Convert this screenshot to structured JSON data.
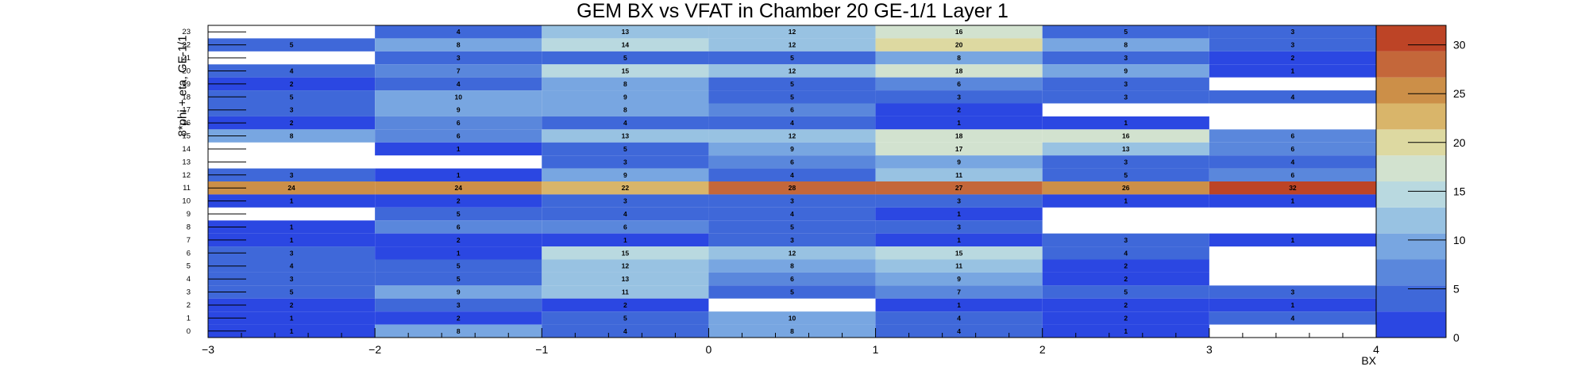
{
  "chart_data": {
    "type": "heatmap",
    "title": "GEM BX vs VFAT in Chamber 20 GE-1/1 Layer 1",
    "xlabel": "BX",
    "ylabel": "8*phi + eta, GE-1/1",
    "xlim": [
      -3,
      4
    ],
    "ylim": [
      0,
      24
    ],
    "x_bins": [
      -2.5,
      -1.5,
      -0.5,
      0.5,
      1.5,
      2.5,
      3.5
    ],
    "x_ticks": [
      -3,
      -2,
      -1,
      0,
      1,
      2,
      3,
      4
    ],
    "y_rows": [
      {
        "y": 23,
        "values": [
          null,
          4,
          13,
          12,
          16,
          5,
          3
        ]
      },
      {
        "y": 22,
        "values": [
          5,
          8,
          14,
          12,
          20,
          8,
          3
        ]
      },
      {
        "y": 21,
        "values": [
          null,
          3,
          5,
          5,
          8,
          3,
          2
        ]
      },
      {
        "y": 20,
        "values": [
          4,
          7,
          15,
          12,
          18,
          9,
          1
        ]
      },
      {
        "y": 19,
        "values": [
          2,
          4,
          8,
          5,
          6,
          3,
          null
        ]
      },
      {
        "y": 18,
        "values": [
          5,
          10,
          9,
          5,
          3,
          3,
          4
        ]
      },
      {
        "y": 17,
        "values": [
          3,
          9,
          8,
          6,
          2,
          null,
          null
        ]
      },
      {
        "y": 16,
        "values": [
          2,
          6,
          4,
          4,
          1,
          1,
          null
        ]
      },
      {
        "y": 15,
        "values": [
          8,
          6,
          13,
          12,
          18,
          16,
          6
        ]
      },
      {
        "y": 14,
        "values": [
          null,
          1,
          5,
          9,
          17,
          13,
          6
        ]
      },
      {
        "y": 13,
        "values": [
          null,
          null,
          3,
          6,
          9,
          3,
          4
        ]
      },
      {
        "y": 12,
        "values": [
          3,
          1,
          9,
          4,
          11,
          5,
          6
        ]
      },
      {
        "y": 11,
        "values": [
          24,
          24,
          22,
          28,
          27,
          26,
          32
        ]
      },
      {
        "y": 10,
        "values": [
          1,
          2,
          3,
          3,
          3,
          1,
          1
        ]
      },
      {
        "y": 9,
        "values": [
          null,
          5,
          4,
          4,
          1,
          null,
          null
        ]
      },
      {
        "y": 8,
        "values": [
          1,
          6,
          6,
          5,
          3,
          null,
          null
        ]
      },
      {
        "y": 7,
        "values": [
          1,
          2,
          1,
          3,
          1,
          3,
          1
        ]
      },
      {
        "y": 6,
        "values": [
          3,
          1,
          15,
          12,
          15,
          4,
          null
        ]
      },
      {
        "y": 5,
        "values": [
          4,
          5,
          12,
          8,
          11,
          2,
          null
        ]
      },
      {
        "y": 4,
        "values": [
          3,
          5,
          13,
          6,
          9,
          2,
          null
        ]
      },
      {
        "y": 3,
        "values": [
          5,
          9,
          11,
          5,
          7,
          5,
          3
        ]
      },
      {
        "y": 2,
        "values": [
          2,
          3,
          2,
          null,
          1,
          2,
          1
        ]
      },
      {
        "y": 1,
        "values": [
          1,
          2,
          5,
          10,
          4,
          2,
          4
        ]
      },
      {
        "y": 0,
        "values": [
          1,
          8,
          4,
          8,
          4,
          1,
          null
        ]
      }
    ],
    "zlim": [
      0,
      32
    ],
    "z_ticks": [
      0,
      5,
      10,
      15,
      20,
      25,
      30
    ],
    "palette": [
      "#2b47e2",
      "#3f68d9",
      "#5a87dc",
      "#78a6e1",
      "#98c2e2",
      "#b9d9e0",
      "#d2e2cf",
      "#ddd9a1",
      "#d9b56a",
      "#cc8f48",
      "#c4673a",
      "#bd4426"
    ],
    "grid": false,
    "colorbar": "right"
  }
}
